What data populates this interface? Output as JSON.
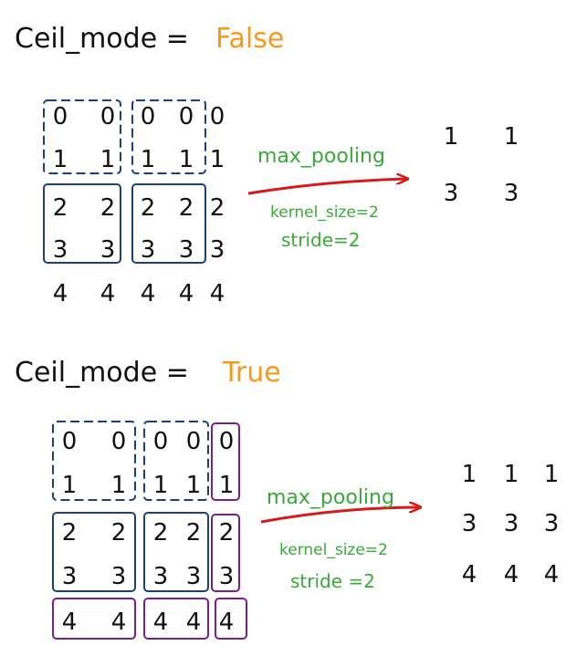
{
  "colors": {
    "accent_orange": "#f39a1c",
    "window_blue": "#1d3f7a",
    "partial_purple": "#7a1f8a",
    "arrow_red": "#d41b1b",
    "annotation_green": "#3aa83a"
  },
  "section_false": {
    "label": "Ceil_mode =",
    "value": "False",
    "input_rows": [
      [
        "0",
        "0",
        "0",
        "0",
        "0"
      ],
      [
        "1",
        "1",
        "1",
        "1",
        "1"
      ],
      [
        "2",
        "2",
        "2",
        "2",
        "2"
      ],
      [
        "3",
        "3",
        "3",
        "3",
        "3"
      ],
      [
        "4",
        "4",
        "4",
        "4",
        "4"
      ]
    ],
    "arrow_label": "max_pooling",
    "kernel_text": "kernel_size=2",
    "stride_text": "stride=2",
    "output_rows": [
      [
        "1",
        "1"
      ],
      [
        "3",
        "3"
      ]
    ]
  },
  "section_true": {
    "label": "Ceil_mode =",
    "value": "True",
    "input_rows": [
      [
        "0",
        "0",
        "0",
        "0",
        "0"
      ],
      [
        "1",
        "1",
        "1",
        "1",
        "1"
      ],
      [
        "2",
        "2",
        "2",
        "2",
        "2"
      ],
      [
        "3",
        "3",
        "3",
        "3",
        "3"
      ],
      [
        "4",
        "4",
        "4",
        "4",
        "4"
      ]
    ],
    "arrow_label": "max_pooling",
    "kernel_text": "kernel_size=2",
    "stride_text": "stride =2",
    "output_rows": [
      [
        "1",
        "1",
        "1"
      ],
      [
        "3",
        "3",
        "3"
      ],
      [
        "4",
        "4",
        "4"
      ]
    ]
  }
}
